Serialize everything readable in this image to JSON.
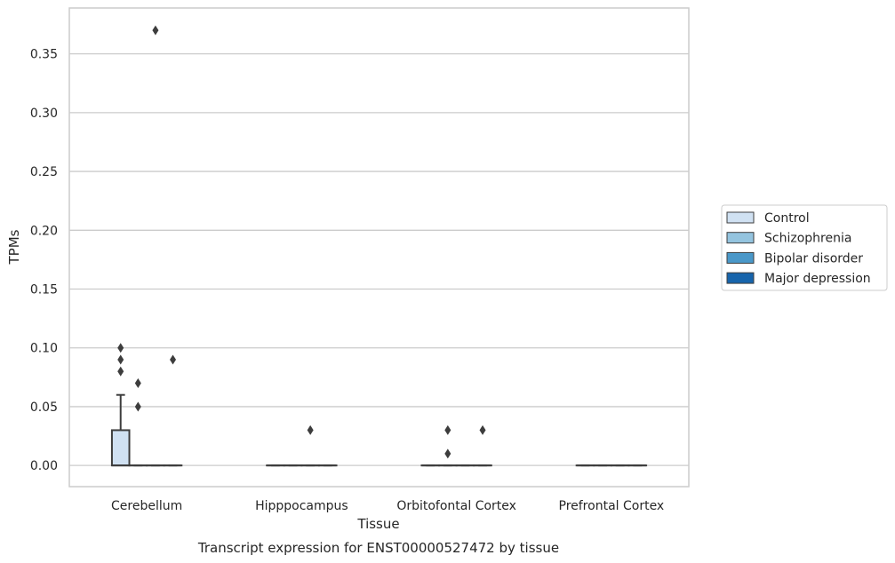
{
  "chart_data": {
    "type": "box",
    "title": "Transcript expression for ENST00000527472 by tissue",
    "xlabel": "Tissue",
    "ylabel": "TPMs",
    "categories": [
      "Cerebellum",
      "Hipppocampus",
      "Orbitofontal Cortex",
      "Prefrontal Cortex"
    ],
    "yticks": [
      "0.00",
      "0.05",
      "0.10",
      "0.15",
      "0.20",
      "0.25",
      "0.30",
      "0.35"
    ],
    "ylim": [
      -0.018,
      0.389
    ],
    "grid": "horizontal",
    "legend_placement": "right",
    "series": [
      {
        "name": "Control",
        "color": "#d0e1f2",
        "boxes": [
          {
            "q1": 0.0,
            "median": 0.0,
            "q3": 0.03,
            "whisker_low": 0.0,
            "whisker_high": 0.06,
            "outliers": [
              0.08,
              0.09,
              0.1
            ]
          },
          {
            "q1": 0.0,
            "median": 0.0,
            "q3": 0.0,
            "whisker_low": 0.0,
            "whisker_high": 0.0,
            "outliers": []
          },
          {
            "q1": 0.0,
            "median": 0.0,
            "q3": 0.0,
            "whisker_low": 0.0,
            "whisker_high": 0.0,
            "outliers": []
          },
          {
            "q1": 0.0,
            "median": 0.0,
            "q3": 0.0,
            "whisker_low": 0.0,
            "whisker_high": 0.0,
            "outliers": []
          }
        ]
      },
      {
        "name": "Schizophrenia",
        "color": "#94c4df",
        "boxes": [
          {
            "q1": 0.0,
            "median": 0.0,
            "q3": 0.0,
            "whisker_low": 0.0,
            "whisker_high": 0.0,
            "outliers": [
              0.05,
              0.07
            ]
          },
          {
            "q1": 0.0,
            "median": 0.0,
            "q3": 0.0,
            "whisker_low": 0.0,
            "whisker_high": 0.0,
            "outliers": []
          },
          {
            "q1": 0.0,
            "median": 0.0,
            "q3": 0.0,
            "whisker_low": 0.0,
            "whisker_high": 0.0,
            "outliers": [
              0.01,
              0.03
            ]
          },
          {
            "q1": 0.0,
            "median": 0.0,
            "q3": 0.0,
            "whisker_low": 0.0,
            "whisker_high": 0.0,
            "outliers": []
          }
        ]
      },
      {
        "name": "Bipolar disorder",
        "color": "#4a98c9",
        "boxes": [
          {
            "q1": 0.0,
            "median": 0.0,
            "q3": 0.0,
            "whisker_low": 0.0,
            "whisker_high": 0.0,
            "outliers": [
              0.37
            ]
          },
          {
            "q1": 0.0,
            "median": 0.0,
            "q3": 0.0,
            "whisker_low": 0.0,
            "whisker_high": 0.0,
            "outliers": [
              0.03
            ]
          },
          {
            "q1": 0.0,
            "median": 0.0,
            "q3": 0.0,
            "whisker_low": 0.0,
            "whisker_high": 0.0,
            "outliers": []
          },
          {
            "q1": 0.0,
            "median": 0.0,
            "q3": 0.0,
            "whisker_low": 0.0,
            "whisker_high": 0.0,
            "outliers": []
          }
        ]
      },
      {
        "name": "Major depression",
        "color": "#1764ab",
        "boxes": [
          {
            "q1": 0.0,
            "median": 0.0,
            "q3": 0.0,
            "whisker_low": 0.0,
            "whisker_high": 0.0,
            "outliers": [
              0.09
            ]
          },
          {
            "q1": 0.0,
            "median": 0.0,
            "q3": 0.0,
            "whisker_low": 0.0,
            "whisker_high": 0.0,
            "outliers": []
          },
          {
            "q1": 0.0,
            "median": 0.0,
            "q3": 0.0,
            "whisker_low": 0.0,
            "whisker_high": 0.0,
            "outliers": [
              0.03
            ]
          },
          {
            "q1": 0.0,
            "median": 0.0,
            "q3": 0.0,
            "whisker_low": 0.0,
            "whisker_high": 0.0,
            "outliers": []
          }
        ]
      }
    ]
  }
}
